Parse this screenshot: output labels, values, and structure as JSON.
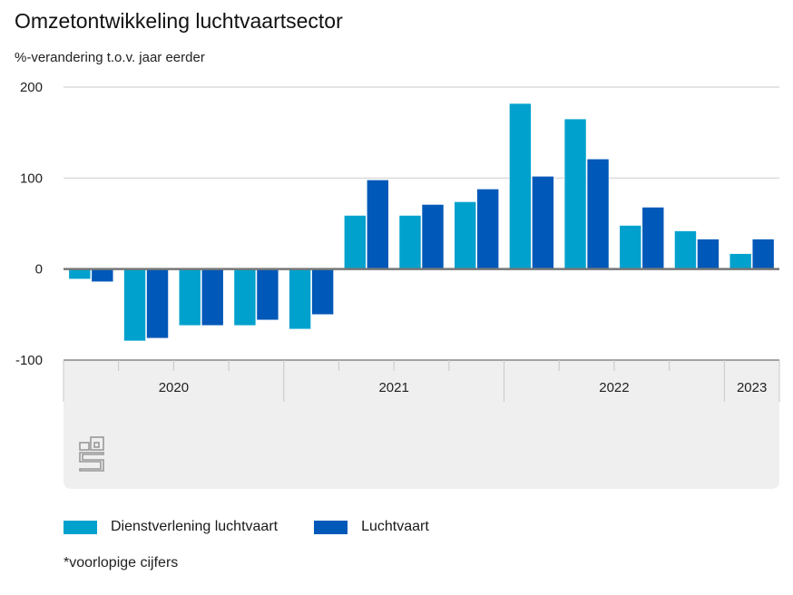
{
  "chart_data": {
    "type": "bar",
    "title": "Omzetontwikkeling luchtvaartsector",
    "ylabel": "%-verandering t.o.v. jaar eerder",
    "xlabel": "",
    "ylim": [
      -100,
      200
    ],
    "yticks": [
      200,
      100,
      0,
      -100
    ],
    "grid": true,
    "categories": [
      "2020 K1",
      "2020 K2",
      "2020 K3",
      "2020 K4",
      "2021 K1",
      "2021 K2",
      "2021 K3",
      "2021 K4",
      "2022 K1",
      "2022 K2",
      "2022 K3",
      "2022 K4",
      "2023 K1"
    ],
    "year_groups": [
      {
        "label": "2020",
        "quarters": 4
      },
      {
        "label": "2021",
        "quarters": 4
      },
      {
        "label": "2022",
        "quarters": 4
      },
      {
        "label": "2023",
        "quarters": 1
      }
    ],
    "series": [
      {
        "name": "Dienstverlening luchtvaart",
        "color": "#00a1cd",
        "values": [
          -11,
          -79,
          -62,
          -62,
          -66,
          59,
          59,
          74,
          182,
          165,
          48,
          42,
          17
        ]
      },
      {
        "name": "Luchtvaart",
        "color": "#0058b8",
        "values": [
          -14,
          -76,
          -62,
          -56,
          -50,
          98,
          71,
          88,
          102,
          121,
          68,
          33,
          33
        ]
      }
    ],
    "legend_position": "bottom-left"
  },
  "header": {
    "title": "Omzetontwikkeling luchtvaartsector",
    "subtitle": "%-verandering t.o.v. jaar eerder"
  },
  "legend": {
    "items": [
      {
        "label": "Dienstverlening luchtvaart",
        "color": "#00a1cd"
      },
      {
        "label": "Luchtvaart",
        "color": "#0058b8"
      }
    ]
  },
  "footnote": "*voorlopige cijfers",
  "logo": "cbs-logo-icon"
}
